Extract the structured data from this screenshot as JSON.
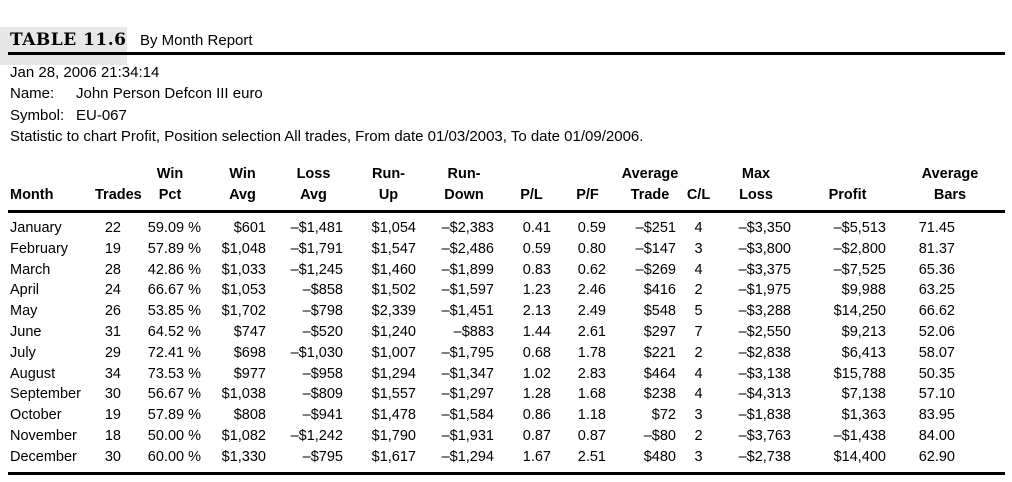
{
  "title": {
    "label": "TABLE 11.6",
    "subtitle": "By Month Report"
  },
  "meta": {
    "timestamp": "Jan 28, 2006 21:34:14",
    "name_label": "Name:",
    "name_value": "John Person Defcon III euro",
    "symbol_label": "Symbol:",
    "symbol_value": "EU-067",
    "statistic_line": "Statistic to chart Profit, Position selection All trades, From date 01/03/2003, To date 01/09/2006."
  },
  "colors": {
    "background": "#ffffff",
    "text": "#000000",
    "title_box_bg": "#e7e7e7",
    "rule": "#000000"
  },
  "table": {
    "columns": [
      {
        "id": "month",
        "line1": "",
        "line2": "Month",
        "align": "left"
      },
      {
        "id": "trades",
        "line1": "",
        "line2": "Trades",
        "align": "right"
      },
      {
        "id": "win-pct",
        "line1": "Win",
        "line2": "Pct",
        "align": "right"
      },
      {
        "id": "win-avg",
        "line1": "Win",
        "line2": "Avg",
        "align": "right"
      },
      {
        "id": "loss-avg",
        "line1": "Loss",
        "line2": "Avg",
        "align": "right"
      },
      {
        "id": "run-up",
        "line1": "Run-",
        "line2": "Up",
        "align": "right"
      },
      {
        "id": "run-down",
        "line1": "Run-",
        "line2": "Down",
        "align": "right"
      },
      {
        "id": "pl",
        "line1": "",
        "line2": "P/L",
        "align": "right"
      },
      {
        "id": "pf",
        "line1": "",
        "line2": "P/F",
        "align": "right"
      },
      {
        "id": "avg-trade",
        "line1": "Average",
        "line2": "Trade",
        "align": "right"
      },
      {
        "id": "cl",
        "line1": "",
        "line2": "C/L",
        "align": "center"
      },
      {
        "id": "max-loss",
        "line1": "Max",
        "line2": "Loss",
        "align": "right"
      },
      {
        "id": "profit",
        "line1": "",
        "line2": "Profit",
        "align": "right"
      },
      {
        "id": "avg-bars",
        "line1": "Average",
        "line2": "Bars",
        "align": "right"
      }
    ],
    "rows": [
      [
        "January",
        "22",
        "59.09 %",
        "$601",
        "–$1,481",
        "$1,054",
        "–$2,383",
        "0.41",
        "0.59",
        "–$251",
        "4",
        "–$3,350",
        "–$5,513",
        "71.45"
      ],
      [
        "February",
        "19",
        "57.89 %",
        "$1,048",
        "–$1,791",
        "$1,547",
        "–$2,486",
        "0.59",
        "0.80",
        "–$147",
        "3",
        "–$3,800",
        "–$2,800",
        "81.37"
      ],
      [
        "March",
        "28",
        "42.86 %",
        "$1,033",
        "–$1,245",
        "$1,460",
        "–$1,899",
        "0.83",
        "0.62",
        "–$269",
        "4",
        "–$3,375",
        "–$7,525",
        "65.36"
      ],
      [
        "April",
        "24",
        "66.67 %",
        "$1,053",
        "–$858",
        "$1,502",
        "–$1,597",
        "1.23",
        "2.46",
        "$416",
        "2",
        "–$1,975",
        "$9,988",
        "63.25"
      ],
      [
        "May",
        "26",
        "53.85 %",
        "$1,702",
        "–$798",
        "$2,339",
        "–$1,451",
        "2.13",
        "2.49",
        "$548",
        "5",
        "–$3,288",
        "$14,250",
        "66.62"
      ],
      [
        "June",
        "31",
        "64.52 %",
        "$747",
        "–$520",
        "$1,240",
        "–$883",
        "1.44",
        "2.61",
        "$297",
        "7",
        "–$2,550",
        "$9,213",
        "52.06"
      ],
      [
        "July",
        "29",
        "72.41 %",
        "$698",
        "–$1,030",
        "$1,007",
        "–$1,795",
        "0.68",
        "1.78",
        "$221",
        "2",
        "–$2,838",
        "$6,413",
        "58.07"
      ],
      [
        "August",
        "34",
        "73.53 %",
        "$977",
        "–$958",
        "$1,294",
        "–$1,347",
        "1.02",
        "2.83",
        "$464",
        "4",
        "–$3,138",
        "$15,788",
        "50.35"
      ],
      [
        "September",
        "30",
        "56.67 %",
        "$1,038",
        "–$809",
        "$1,557",
        "–$1,297",
        "1.28",
        "1.68",
        "$238",
        "4",
        "–$4,313",
        "$7,138",
        "57.10"
      ],
      [
        "October",
        "19",
        "57.89 %",
        "$808",
        "–$941",
        "$1,478",
        "–$1,584",
        "0.86",
        "1.18",
        "$72",
        "3",
        "–$1,838",
        "$1,363",
        "83.95"
      ],
      [
        "November",
        "18",
        "50.00 %",
        "$1,082",
        "–$1,242",
        "$1,790",
        "–$1,931",
        "0.87",
        "0.87",
        "–$80",
        "2",
        "–$3,763",
        "–$1,438",
        "84.00"
      ],
      [
        "December",
        "30",
        "60.00 %",
        "$1,330",
        "–$795",
        "$1,617",
        "–$1,294",
        "1.67",
        "2.51",
        "$480",
        "3",
        "–$2,738",
        "$14,400",
        "62.90"
      ]
    ]
  }
}
